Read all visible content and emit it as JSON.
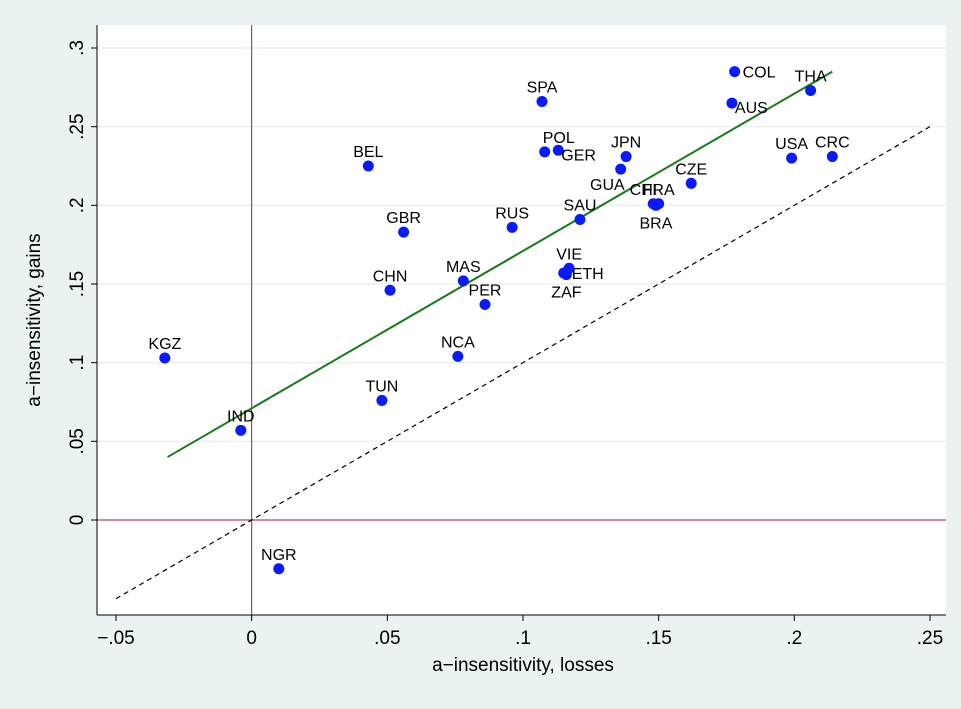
{
  "chart_data": {
    "type": "scatter",
    "xlabel": "a−insensitivity, losses",
    "ylabel": "a−insensitivity, gains",
    "xlim": [
      -0.05,
      0.25
    ],
    "ylim": [
      -0.05,
      0.3
    ],
    "x_ticks": [
      {
        "value": -0.05,
        "label": "−.05"
      },
      {
        "value": 0,
        "label": "0"
      },
      {
        "value": 0.05,
        "label": ".05"
      },
      {
        "value": 0.1,
        "label": ".1"
      },
      {
        "value": 0.15,
        "label": ".15"
      },
      {
        "value": 0.2,
        "label": ".2"
      },
      {
        "value": 0.25,
        "label": ".25"
      }
    ],
    "y_ticks": [
      {
        "value": 0,
        "label": "0"
      },
      {
        "value": 0.05,
        "label": ".05"
      },
      {
        "value": 0.1,
        "label": ".1"
      },
      {
        "value": 0.15,
        "label": ".15"
      },
      {
        "value": 0.2,
        "label": ".2"
      },
      {
        "value": 0.25,
        "label": ".25"
      },
      {
        "value": 0.3,
        "label": ".3"
      }
    ],
    "grid": "horizontal",
    "legend": "none",
    "colors": {
      "background": "#eaf2f3",
      "plot_background": "#ffffff",
      "gridline": "#e6eef0",
      "point": "#0a1aff",
      "fit_line": "#1a7a1a",
      "reference_lines": "#9b1b4b",
      "diagonal": "#000000"
    },
    "fit_line": {
      "x": [
        -0.031,
        0.214
      ],
      "y": [
        0.04,
        0.285
      ]
    },
    "diagonal": {
      "x": [
        -0.05,
        0.25
      ],
      "y": [
        -0.05,
        0.25
      ]
    },
    "points": [
      {
        "label": "KGZ",
        "x": -0.032,
        "y": 0.103,
        "pos": "n"
      },
      {
        "label": "IND",
        "x": -0.004,
        "y": 0.057,
        "pos": "n"
      },
      {
        "label": "NGR",
        "x": 0.01,
        "y": -0.031,
        "pos": "n"
      },
      {
        "label": "BEL",
        "x": 0.043,
        "y": 0.225,
        "pos": "n"
      },
      {
        "label": "GBR",
        "x": 0.056,
        "y": 0.183,
        "pos": "n"
      },
      {
        "label": "CHN",
        "x": 0.051,
        "y": 0.146,
        "pos": "n"
      },
      {
        "label": "TUN",
        "x": 0.048,
        "y": 0.076,
        "pos": "n"
      },
      {
        "label": "MAS",
        "x": 0.078,
        "y": 0.152,
        "pos": "n"
      },
      {
        "label": "PER",
        "x": 0.086,
        "y": 0.137,
        "pos": "n"
      },
      {
        "label": "NCA",
        "x": 0.076,
        "y": 0.104,
        "pos": "n"
      },
      {
        "label": "RUS",
        "x": 0.096,
        "y": 0.186,
        "pos": "n"
      },
      {
        "label": "SPA",
        "x": 0.107,
        "y": 0.266,
        "pos": "n"
      },
      {
        "label": "POL",
        "x": 0.108,
        "y": 0.234,
        "pos": "ne"
      },
      {
        "label": "GER",
        "x": 0.113,
        "y": 0.235,
        "pos": "se"
      },
      {
        "label": "JPN",
        "x": 0.138,
        "y": 0.231,
        "pos": "n"
      },
      {
        "label": "GUA",
        "x": 0.136,
        "y": 0.223,
        "pos": "sw"
      },
      {
        "label": "CHI",
        "x": 0.148,
        "y": 0.201,
        "pos": "nw"
      },
      {
        "label": "FRA",
        "x": 0.15,
        "y": 0.201,
        "pos": "n"
      },
      {
        "label": "BRA",
        "x": 0.149,
        "y": 0.2,
        "pos": "s"
      },
      {
        "label": "SAU",
        "x": 0.121,
        "y": 0.191,
        "pos": "n"
      },
      {
        "label": "VIE",
        "x": 0.117,
        "y": 0.16,
        "pos": "n"
      },
      {
        "label": "ETH",
        "x": 0.115,
        "y": 0.157,
        "pos": "e"
      },
      {
        "label": "ZAF",
        "x": 0.116,
        "y": 0.156,
        "pos": "s"
      },
      {
        "label": "CZE",
        "x": 0.162,
        "y": 0.214,
        "pos": "n"
      },
      {
        "label": "COL",
        "x": 0.178,
        "y": 0.285,
        "pos": "e"
      },
      {
        "label": "AUS",
        "x": 0.177,
        "y": 0.265,
        "pos": "se"
      },
      {
        "label": "THA",
        "x": 0.206,
        "y": 0.273,
        "pos": "n"
      },
      {
        "label": "USA",
        "x": 0.199,
        "y": 0.23,
        "pos": "n"
      },
      {
        "label": "CRC",
        "x": 0.214,
        "y": 0.231,
        "pos": "n"
      }
    ]
  }
}
